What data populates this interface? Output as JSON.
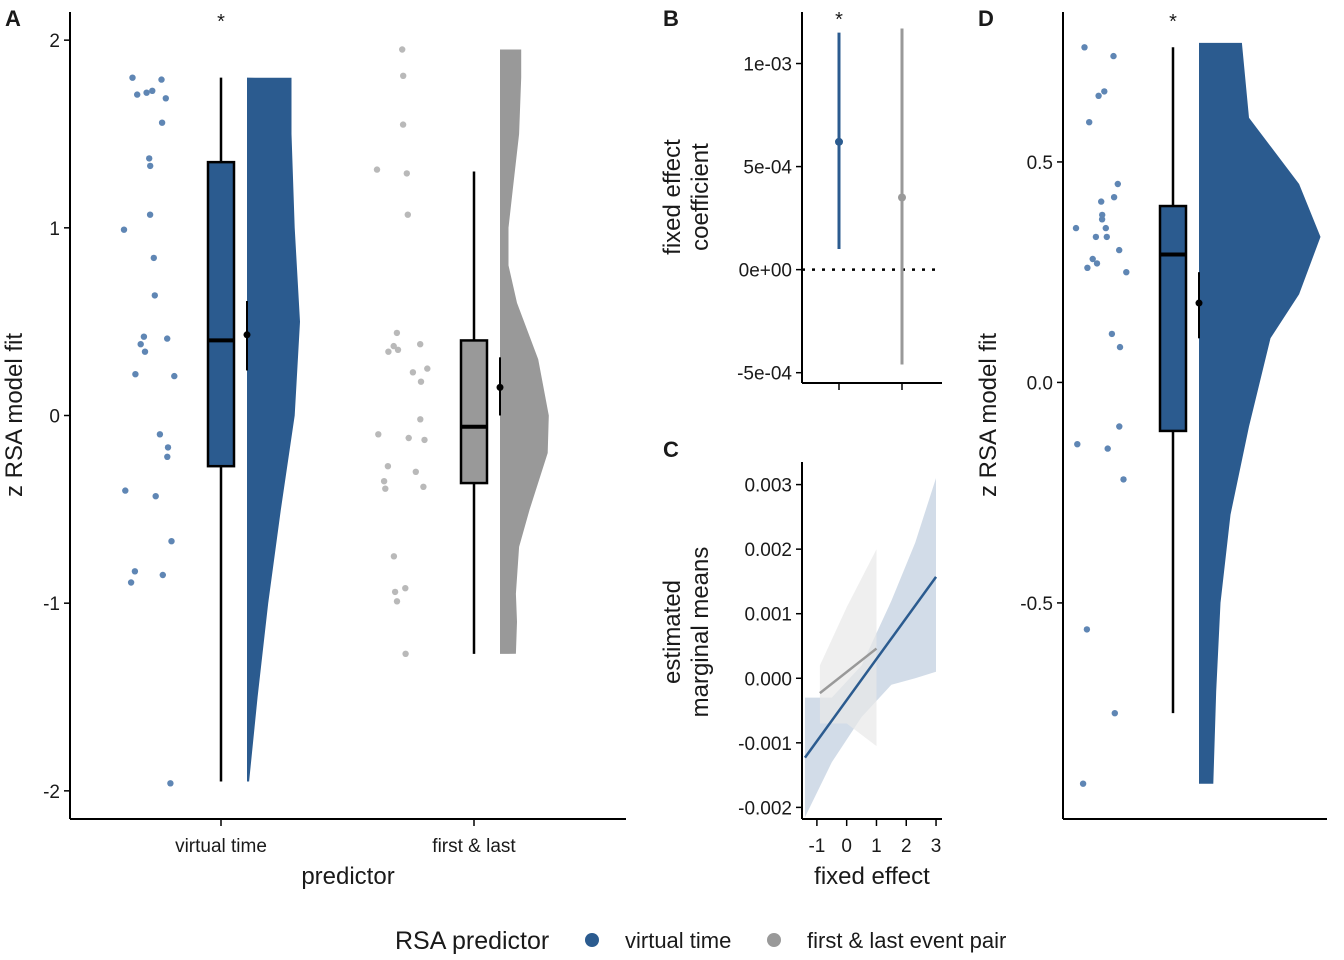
{
  "colors": {
    "blue": "#2b5b8f",
    "blue_point": "#5f86b4",
    "grey": "#999999",
    "grey_point": "#b9b9b9",
    "band_blue": "#cad6e4",
    "band_grey": "#e8e8e8"
  },
  "legend": {
    "title": "RSA predictor",
    "items": [
      {
        "label": "virtual time",
        "color": "#2b5b8f"
      },
      {
        "label": "first & last event pair",
        "color": "#999999"
      }
    ]
  },
  "chart_data": [
    {
      "panel": "A",
      "type": "raincloud",
      "xlabel": "predictor",
      "ylabel": "z RSA model fit",
      "ylim": [
        -2.15,
        2.15
      ],
      "yticks": [
        2,
        1,
        0,
        -1,
        -2
      ],
      "yticklabels": [
        "2",
        "1",
        "0",
        "-1",
        "-2"
      ],
      "groups": [
        {
          "label": "virtual time",
          "color": "#2b5b8f",
          "significance": "*",
          "box": {
            "q1": -0.27,
            "median": 0.4,
            "q3": 1.35,
            "whisker_low": -1.95,
            "whisker_high": 1.8
          },
          "mean": 0.43,
          "mean_ci": [
            0.24,
            0.61
          ],
          "density": {
            "y": [
              -1.95,
              -1.5,
              -1.0,
              -0.5,
              0.0,
              0.5,
              1.0,
              1.5,
              1.8
            ],
            "w": [
              0.02,
              0.1,
              0.2,
              0.32,
              0.45,
              0.5,
              0.45,
              0.42,
              0.42
            ]
          },
          "points": [
            1.8,
            1.79,
            1.73,
            1.72,
            1.71,
            1.69,
            1.56,
            1.37,
            1.33,
            1.07,
            0.99,
            0.84,
            0.64,
            0.42,
            0.41,
            0.38,
            0.34,
            0.22,
            0.21,
            -0.1,
            -0.17,
            -0.22,
            -0.4,
            -0.43,
            -0.67,
            -0.83,
            -0.85,
            -0.89,
            -1.96
          ]
        },
        {
          "label": "first & last",
          "color": "#999999",
          "significance": "",
          "box": {
            "q1": -0.36,
            "median": -0.06,
            "q3": 0.4,
            "whisker_low": -1.27,
            "whisker_high": 1.3
          },
          "mean": 0.15,
          "mean_ci": [
            0.0,
            0.31
          ],
          "density": {
            "y": [
              -1.27,
              -1.1,
              -0.95,
              -0.7,
              -0.5,
              -0.2,
              0.0,
              0.3,
              0.6,
              0.8,
              1.0,
              1.2,
              1.5,
              1.8,
              1.95
            ],
            "w": [
              0.15,
              0.16,
              0.15,
              0.18,
              0.28,
              0.45,
              0.46,
              0.36,
              0.16,
              0.08,
              0.08,
              0.12,
              0.18,
              0.2,
              0.2
            ]
          },
          "points": [
            1.95,
            1.81,
            1.55,
            1.31,
            1.29,
            1.07,
            0.44,
            0.38,
            0.37,
            0.35,
            0.34,
            0.25,
            0.23,
            0.18,
            -0.02,
            -0.1,
            -0.12,
            -0.13,
            -0.27,
            -0.3,
            -0.35,
            -0.38,
            -0.39,
            -0.75,
            -0.92,
            -0.94,
            -0.99,
            -1.27
          ]
        }
      ]
    },
    {
      "panel": "B",
      "type": "pointrange",
      "ylabel": "fixed effect coefficient",
      "ylim": [
        -0.00055,
        0.00125
      ],
      "yticks": [
        0.001,
        0.0005,
        0,
        -0.0005
      ],
      "yticklabels": [
        "1e-03",
        "5e-04",
        "0e+00",
        "-5e-04"
      ],
      "reference_line": 0,
      "series": [
        {
          "name": "virtual time",
          "color": "#2b5b8f",
          "estimate": 0.00062,
          "ci": [
            0.0001,
            0.00115
          ],
          "significance": "*"
        },
        {
          "name": "first & last event pair",
          "color": "#999999",
          "estimate": 0.00035,
          "ci": [
            -0.00046,
            0.00117
          ],
          "significance": ""
        }
      ]
    },
    {
      "panel": "C",
      "type": "line",
      "xlabel": "fixed effect",
      "ylabel": "estimated marginal means",
      "xlim": [
        -1.5,
        3.2
      ],
      "ylim": [
        -0.00218,
        0.00335
      ],
      "xticks": [
        -1,
        0,
        1,
        2,
        3
      ],
      "xticklabels": [
        "-1",
        "0",
        "1",
        "2",
        "3"
      ],
      "yticks": [
        0.003,
        0.002,
        0.001,
        0,
        -0.001,
        -0.002
      ],
      "yticklabels": [
        "0.003",
        "0.002",
        "0.001",
        "0.000",
        "-0.001",
        "-0.002"
      ],
      "series": [
        {
          "name": "virtual time",
          "color": "#2b5b8f",
          "x": [
            -1.4,
            3.0
          ],
          "y": [
            -0.00123,
            0.00157
          ],
          "ci_x": [
            -1.4,
            -0.5,
            0.5,
            1.5,
            2.3,
            3.0
          ],
          "ci_low": [
            -0.00215,
            -0.0013,
            -0.0006,
            -0.0001,
            0.0,
            0.0001
          ],
          "ci_high": [
            -0.0003,
            -0.0003,
            0.0002,
            0.0012,
            0.0021,
            0.0031
          ]
        },
        {
          "name": "first & last event pair",
          "color": "#999999",
          "x": [
            -0.9,
            1.0
          ],
          "y": [
            -0.00023,
            0.00046
          ],
          "ci_x": [
            -0.9,
            0.0,
            1.0
          ],
          "ci_low": [
            -0.0007,
            -0.0007,
            -0.00105
          ],
          "ci_high": [
            0.0002,
            0.0011,
            0.002
          ]
        }
      ]
    },
    {
      "panel": "D",
      "type": "raincloud",
      "ylabel": "z RSA model fit",
      "ylim": [
        -0.99,
        0.84
      ],
      "yticks": [
        0.5,
        0.0,
        -0.5
      ],
      "yticklabels": [
        "0.5",
        "0.0",
        "-0.5"
      ],
      "groups": [
        {
          "label": "virtual time",
          "color": "#2b5b8f",
          "significance": "*",
          "box": {
            "q1": -0.11,
            "median": 0.29,
            "q3": 0.4,
            "whisker_low": -0.75,
            "whisker_high": 0.76
          },
          "mean": 0.18,
          "mean_ci": [
            0.1,
            0.25
          ],
          "density": {
            "y": [
              -0.91,
              -0.7,
              -0.5,
              -0.3,
              -0.1,
              0.1,
              0.2,
              0.33,
              0.45,
              0.6,
              0.77
            ],
            "w": [
              0.1,
              0.12,
              0.15,
              0.22,
              0.35,
              0.5,
              0.7,
              0.85,
              0.7,
              0.35,
              0.3
            ]
          },
          "points": [
            0.76,
            0.74,
            0.66,
            0.65,
            0.59,
            0.45,
            0.42,
            0.41,
            0.38,
            0.37,
            0.35,
            0.35,
            0.33,
            0.33,
            0.3,
            0.28,
            0.27,
            0.26,
            0.25,
            0.11,
            0.08,
            -0.1,
            -0.14,
            -0.15,
            -0.22,
            -0.56,
            -0.75,
            -0.91
          ]
        }
      ]
    }
  ]
}
